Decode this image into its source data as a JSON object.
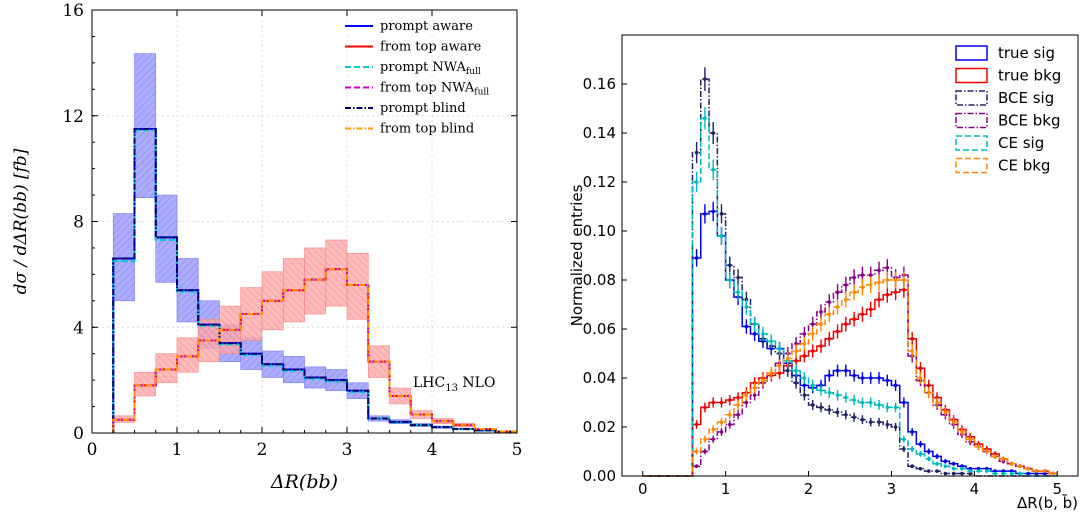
{
  "chart_data": [
    {
      "type": "histogram",
      "xlabel": "ΔR(bb)",
      "ylabel": "dσ / dΔR(bb) [fb]",
      "xlim": [
        0,
        5
      ],
      "ylim": [
        0,
        16
      ],
      "xticks": [
        0,
        1,
        2,
        3,
        4,
        5
      ],
      "yticks": [
        0,
        4,
        8,
        12,
        16
      ],
      "grid": true,
      "legend_position": "top-right",
      "annotation": "LHC",
      "annotation_sub": "13",
      "annotation_tail": " NLO",
      "bin_edges": [
        0.25,
        0.5,
        0.75,
        1.0,
        1.25,
        1.5,
        1.75,
        2.0,
        2.25,
        2.5,
        2.75,
        3.0,
        3.25,
        3.5,
        3.75,
        4.0,
        4.25,
        4.5,
        4.75,
        5.0
      ],
      "series": [
        {
          "name": "prompt aware",
          "color": "#0000ff",
          "style": "solid",
          "values": [
            6.6,
            11.5,
            7.4,
            5.4,
            4.1,
            3.4,
            3.0,
            2.6,
            2.4,
            2.1,
            2.0,
            1.6,
            0.55,
            0.42,
            0.3,
            0.22,
            0.15,
            0.1,
            0.05
          ],
          "band_low": [
            5.0,
            8.9,
            5.7,
            4.2,
            3.2,
            2.7,
            2.4,
            2.1,
            1.9,
            1.7,
            1.6,
            1.3,
            0.45,
            0.35,
            0.25,
            0.18,
            0.12,
            0.08,
            0.04
          ],
          "band_high": [
            8.3,
            14.35,
            9.0,
            6.6,
            5.0,
            4.1,
            3.6,
            3.1,
            2.9,
            2.5,
            2.4,
            1.9,
            0.65,
            0.5,
            0.36,
            0.26,
            0.18,
            0.12,
            0.06
          ]
        },
        {
          "name": "from top aware",
          "color": "#ff0000",
          "style": "solid",
          "values": [
            0.5,
            1.8,
            2.4,
            2.9,
            3.5,
            3.9,
            4.5,
            5.0,
            5.4,
            5.8,
            6.2,
            5.6,
            2.7,
            1.4,
            0.7,
            0.45,
            0.3,
            0.15,
            0.05
          ],
          "band_low": [
            0.4,
            1.4,
            1.9,
            2.3,
            2.7,
            3.0,
            3.5,
            3.9,
            4.2,
            4.5,
            4.8,
            4.3,
            2.1,
            1.1,
            0.55,
            0.35,
            0.23,
            0.12,
            0.04
          ],
          "band_high": [
            0.65,
            2.3,
            3.0,
            3.6,
            4.3,
            4.8,
            5.5,
            6.1,
            6.6,
            7.0,
            7.3,
            6.8,
            3.3,
            1.7,
            0.85,
            0.55,
            0.37,
            0.18,
            0.06
          ]
        },
        {
          "name": "prompt NWA",
          "name_sub": "full",
          "color": "#00cccc",
          "style": "dashed",
          "values": [
            6.5,
            11.45,
            7.3,
            5.35,
            4.05,
            3.35,
            2.95,
            2.55,
            2.35,
            2.05,
            1.95,
            1.55,
            0.55,
            0.4,
            0.3,
            0.22,
            0.15,
            0.1,
            0.05
          ]
        },
        {
          "name": "from top NWA",
          "name_sub": "full",
          "color": "#cc00cc",
          "style": "dashed",
          "values": [
            0.5,
            1.8,
            2.4,
            2.9,
            3.5,
            3.9,
            4.5,
            5.0,
            5.4,
            5.8,
            6.2,
            5.6,
            2.7,
            1.4,
            0.7,
            0.45,
            0.3,
            0.15,
            0.05
          ]
        },
        {
          "name": "prompt blind",
          "color": "#000066",
          "style": "dashdot",
          "values": [
            6.6,
            11.5,
            7.4,
            5.4,
            4.1,
            3.4,
            3.0,
            2.6,
            2.4,
            2.1,
            2.0,
            1.6,
            0.55,
            0.42,
            0.3,
            0.22,
            0.15,
            0.1,
            0.05
          ]
        },
        {
          "name": "from top blind",
          "color": "#ff9900",
          "style": "dashdot",
          "values": [
            0.5,
            1.8,
            2.4,
            2.9,
            3.5,
            3.9,
            4.5,
            5.0,
            5.4,
            5.8,
            6.2,
            5.6,
            2.7,
            1.4,
            0.7,
            0.45,
            0.3,
            0.15,
            0.05
          ]
        }
      ]
    },
    {
      "type": "histogram",
      "xlabel": "ΔR(b, b̄)",
      "ylabel": "Normalized entries",
      "xlim": [
        -0.25,
        5.25
      ],
      "ylim": [
        0,
        0.18
      ],
      "xticks": [
        0,
        1,
        2,
        3,
        4,
        5
      ],
      "yticks": [
        0.0,
        0.02,
        0.04,
        0.06,
        0.08,
        0.1,
        0.12,
        0.14,
        0.16
      ],
      "ytick_labels": [
        "0.00",
        "0.02",
        "0.04",
        "0.06",
        "0.08",
        "0.10",
        "0.12",
        "0.14",
        "0.16"
      ],
      "grid": false,
      "legend_position": "top-right",
      "bin_edges": [
        0.0,
        0.1,
        0.2,
        0.3,
        0.4,
        0.5,
        0.6,
        0.7,
        0.8,
        0.9,
        1.0,
        1.1,
        1.2,
        1.3,
        1.4,
        1.5,
        1.6,
        1.7,
        1.8,
        1.9,
        2.0,
        2.1,
        2.2,
        2.3,
        2.4,
        2.5,
        2.6,
        2.7,
        2.8,
        2.9,
        3.0,
        3.1,
        3.2,
        3.3,
        3.4,
        3.5,
        3.6,
        3.7,
        3.8,
        3.9,
        4.0,
        4.1,
        4.2,
        4.3,
        4.4,
        4.5,
        4.6,
        4.7,
        4.8,
        4.9,
        5.0
      ],
      "series": [
        {
          "name": "true sig",
          "color": "#0000ee",
          "style": "solid",
          "values": [
            0,
            0,
            0,
            0,
            0,
            0.0,
            0.089,
            0.107,
            0.108,
            0.098,
            0.08,
            0.073,
            0.061,
            0.058,
            0.055,
            0.052,
            0.052,
            0.046,
            0.041,
            0.037,
            0.036,
            0.037,
            0.041,
            0.043,
            0.043,
            0.041,
            0.04,
            0.04,
            0.04,
            0.039,
            0.037,
            0.03,
            0.018,
            0.013,
            0.01,
            0.008,
            0.006,
            0.005,
            0.004,
            0.003,
            0.003,
            0.003,
            0.002,
            0.002,
            0.002,
            0.001,
            0.001,
            0.001,
            0.001,
            0.001
          ]
        },
        {
          "name": "true bkg",
          "color": "#ee0000",
          "style": "solid",
          "values": [
            0,
            0,
            0,
            0,
            0,
            0.0,
            0.021,
            0.028,
            0.03,
            0.03,
            0.031,
            0.032,
            0.034,
            0.038,
            0.04,
            0.041,
            0.042,
            0.045,
            0.047,
            0.049,
            0.051,
            0.053,
            0.056,
            0.059,
            0.062,
            0.064,
            0.066,
            0.068,
            0.072,
            0.074,
            0.075,
            0.076,
            0.056,
            0.044,
            0.037,
            0.032,
            0.027,
            0.023,
            0.019,
            0.016,
            0.013,
            0.011,
            0.009,
            0.007,
            0.005,
            0.004,
            0.003,
            0.002,
            0.002,
            0.001
          ]
        },
        {
          "name": "BCE sig",
          "color": "#222266",
          "style": "dashdot",
          "values": [
            0,
            0,
            0,
            0,
            0,
            0.0,
            0.132,
            0.162,
            0.14,
            0.107,
            0.086,
            0.081,
            0.072,
            0.062,
            0.056,
            0.053,
            0.05,
            0.043,
            0.038,
            0.033,
            0.029,
            0.028,
            0.027,
            0.026,
            0.025,
            0.024,
            0.023,
            0.022,
            0.022,
            0.021,
            0.02,
            0.011,
            0.004,
            0.003,
            0.002,
            0.002,
            0.001,
            0.001,
            0.001,
            0.001,
            0.0,
            0.0,
            0.0,
            0.0,
            0.0,
            0.0,
            0.0,
            0.0,
            0.0,
            0.0
          ]
        },
        {
          "name": "BCE bkg",
          "color": "#880088",
          "style": "dashdot",
          "values": [
            0,
            0,
            0,
            0,
            0,
            0.0,
            0.004,
            0.01,
            0.015,
            0.018,
            0.021,
            0.025,
            0.03,
            0.033,
            0.038,
            0.042,
            0.046,
            0.05,
            0.054,
            0.058,
            0.062,
            0.067,
            0.071,
            0.075,
            0.078,
            0.081,
            0.082,
            0.082,
            0.084,
            0.085,
            0.081,
            0.082,
            0.049,
            0.039,
            0.034,
            0.029,
            0.025,
            0.021,
            0.017,
            0.014,
            0.012,
            0.01,
            0.008,
            0.006,
            0.005,
            0.004,
            0.003,
            0.002,
            0.002,
            0.001
          ]
        },
        {
          "name": "CE sig",
          "color": "#00bbbb",
          "style": "dashed",
          "values": [
            0,
            0,
            0,
            0,
            0,
            0.0,
            0.12,
            0.146,
            0.125,
            0.098,
            0.08,
            0.075,
            0.069,
            0.062,
            0.058,
            0.055,
            0.052,
            0.047,
            0.043,
            0.04,
            0.037,
            0.035,
            0.034,
            0.033,
            0.032,
            0.031,
            0.03,
            0.03,
            0.029,
            0.028,
            0.028,
            0.015,
            0.011,
            0.009,
            0.007,
            0.005,
            0.004,
            0.003,
            0.003,
            0.002,
            0.002,
            0.002,
            0.001,
            0.001,
            0.001,
            0.001,
            0.0,
            0.0,
            0.0,
            0.0
          ]
        },
        {
          "name": "CE bkg",
          "color": "#ff8800",
          "style": "dashed",
          "values": [
            0,
            0,
            0,
            0,
            0,
            0.0,
            0.01,
            0.015,
            0.019,
            0.022,
            0.025,
            0.029,
            0.033,
            0.036,
            0.039,
            0.042,
            0.045,
            0.048,
            0.051,
            0.054,
            0.058,
            0.062,
            0.066,
            0.069,
            0.072,
            0.075,
            0.077,
            0.078,
            0.079,
            0.08,
            0.08,
            0.08,
            0.051,
            0.04,
            0.034,
            0.03,
            0.026,
            0.022,
            0.018,
            0.015,
            0.012,
            0.01,
            0.008,
            0.007,
            0.005,
            0.004,
            0.003,
            0.002,
            0.002,
            0.001
          ]
        }
      ]
    }
  ]
}
